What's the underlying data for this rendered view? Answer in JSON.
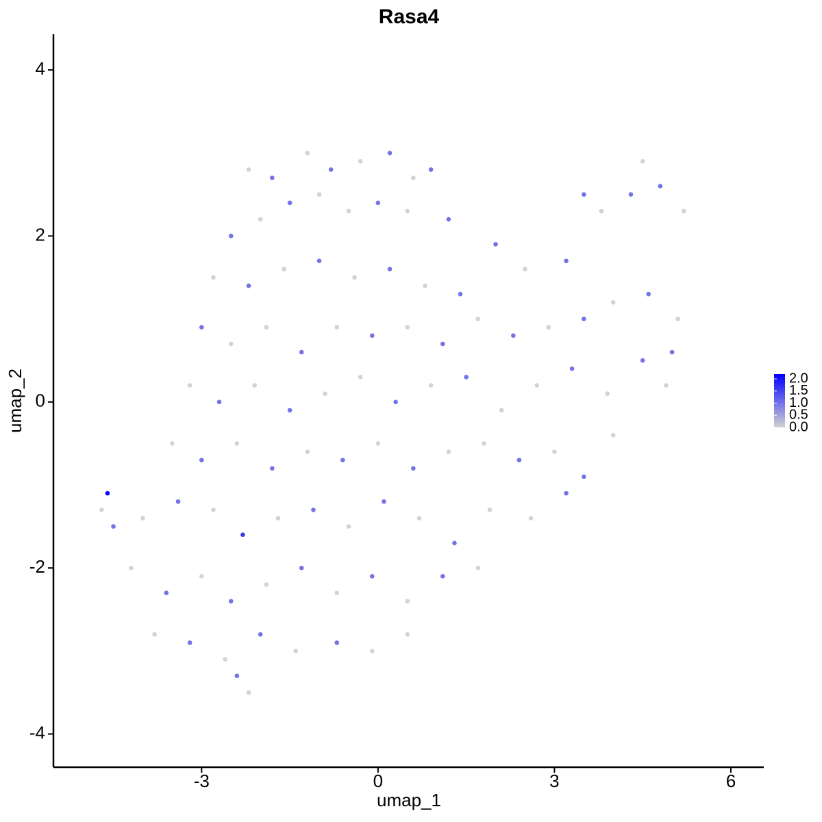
{
  "chart_data": {
    "type": "scatter",
    "title": "Rasa4",
    "xlabel": "umap_1",
    "ylabel": "umap_2",
    "xlim": [
      -5.52,
      6.56
    ],
    "ylim": [
      -4.4,
      4.43
    ],
    "xticks": [
      -3,
      0,
      3,
      6
    ],
    "yticks": [
      -4,
      -2,
      0,
      2,
      4
    ],
    "color_low": "#d3d3d3",
    "color_high": "#0000ff",
    "colorbar": {
      "lim": [
        0,
        2.2
      ],
      "ticks": [
        {
          "value": 0,
          "label": "0.0"
        },
        {
          "value": 0.5,
          "label": "0.5"
        },
        {
          "value": 1,
          "label": "1.0"
        },
        {
          "value": 1.5,
          "label": "1.5"
        },
        {
          "value": 2,
          "label": "2.0"
        }
      ]
    },
    "x": [
      -2.2,
      -1.8,
      -1.2,
      -0.8,
      -0.3,
      0.2,
      0.6,
      0.9,
      -2.5,
      -2.0,
      -1.5,
      -1.0,
      -0.5,
      0,
      0.5,
      1.2,
      -2.8,
      -2.2,
      -1.6,
      -1.0,
      -0.4,
      0.2,
      0.8,
      1.4,
      2.0,
      2.5,
      3.2,
      3.8,
      4.3,
      4.8,
      5.2,
      4.5,
      3.5,
      -3.0,
      -2.5,
      -1.9,
      -1.3,
      -0.7,
      -0.1,
      0.5,
      1.1,
      1.7,
      2.3,
      2.9,
      3.5,
      4.0,
      4.6,
      5.1,
      5.0,
      -3.2,
      -2.7,
      -2.1,
      -1.5,
      -0.9,
      -0.3,
      0.3,
      0.9,
      1.5,
      2.1,
      2.7,
      3.3,
      3.9,
      4.5,
      4.9,
      -3.5,
      -3.0,
      -2.4,
      -1.8,
      -1.2,
      -0.6,
      0,
      0.6,
      1.2,
      1.8,
      2.4,
      3.0,
      3.5,
      4.0,
      -4.0,
      -3.4,
      -2.8,
      -2.3,
      -1.7,
      -1.1,
      -0.5,
      0.1,
      0.7,
      1.3,
      1.9,
      2.6,
      3.2,
      -4.2,
      -3.6,
      -3.0,
      -2.5,
      -1.9,
      -1.3,
      -0.7,
      -0.1,
      0.5,
      1.1,
      1.7,
      -3.8,
      -3.2,
      -2.6,
      -2.0,
      -1.4,
      -0.7,
      -0.1,
      0.5,
      -2.2,
      -2.4,
      -4.6,
      -4.7,
      -4.5
    ],
    "y": [
      2.8,
      2.7,
      3.0,
      2.8,
      2.9,
      3.0,
      2.7,
      2.8,
      2.0,
      2.2,
      2.4,
      2.5,
      2.3,
      2.4,
      2.3,
      2.2,
      1.5,
      1.4,
      1.6,
      1.7,
      1.5,
      1.6,
      1.4,
      1.3,
      1.9,
      1.6,
      1.7,
      2.3,
      2.5,
      2.6,
      2.3,
      2.9,
      2.5,
      0.9,
      0.7,
      0.9,
      0.6,
      0.9,
      0.8,
      0.9,
      0.7,
      1.0,
      0.8,
      0.9,
      1.0,
      1.2,
      1.3,
      1.0,
      0.6,
      0.2,
      0.0,
      0.2,
      -0.1,
      0.1,
      0.3,
      0.0,
      0.2,
      0.3,
      -0.1,
      0.2,
      0.4,
      0.1,
      0.5,
      0.2,
      -0.5,
      -0.7,
      -0.5,
      -0.8,
      -0.6,
      -0.7,
      -0.5,
      -0.8,
      -0.6,
      -0.5,
      -0.7,
      -0.6,
      -0.9,
      -0.4,
      -1.4,
      -1.2,
      -1.3,
      -1.6,
      -1.4,
      -1.3,
      -1.5,
      -1.2,
      -1.4,
      -1.7,
      -1.3,
      -1.4,
      -1.1,
      -2.0,
      -2.3,
      -2.1,
      -2.4,
      -2.2,
      -2.0,
      -2.3,
      -2.1,
      -2.4,
      -2.1,
      -2.0,
      -2.8,
      -2.9,
      -3.1,
      -2.8,
      -3.0,
      -2.9,
      -3.0,
      -2.8,
      -3.5,
      -3.3,
      -1.1,
      -1.3,
      -1.5
    ],
    "values": [
      0,
      1,
      0,
      1,
      0,
      1,
      0,
      1,
      1,
      0,
      1,
      0,
      0,
      1,
      0,
      1,
      0,
      1,
      0,
      1,
      0,
      1,
      0,
      1,
      1,
      0,
      1,
      0,
      1,
      1,
      0,
      0,
      1,
      1,
      0,
      0,
      1,
      0,
      1,
      0,
      1,
      0,
      1,
      0,
      1,
      0,
      1,
      0,
      1,
      0,
      1,
      0,
      1,
      0,
      0,
      1,
      0,
      1,
      0,
      0,
      1,
      0,
      1,
      0,
      0,
      1,
      0,
      1,
      0,
      1,
      0,
      1,
      0,
      0,
      1,
      0,
      1,
      0,
      0,
      1,
      0,
      1.6,
      0,
      1,
      0,
      1,
      0,
      1,
      0,
      0,
      1,
      0,
      1,
      0,
      1,
      0,
      1,
      0,
      1,
      0,
      1,
      0,
      0,
      1,
      0,
      1,
      0,
      1,
      0,
      0,
      0,
      1,
      2.1,
      0,
      1
    ]
  }
}
